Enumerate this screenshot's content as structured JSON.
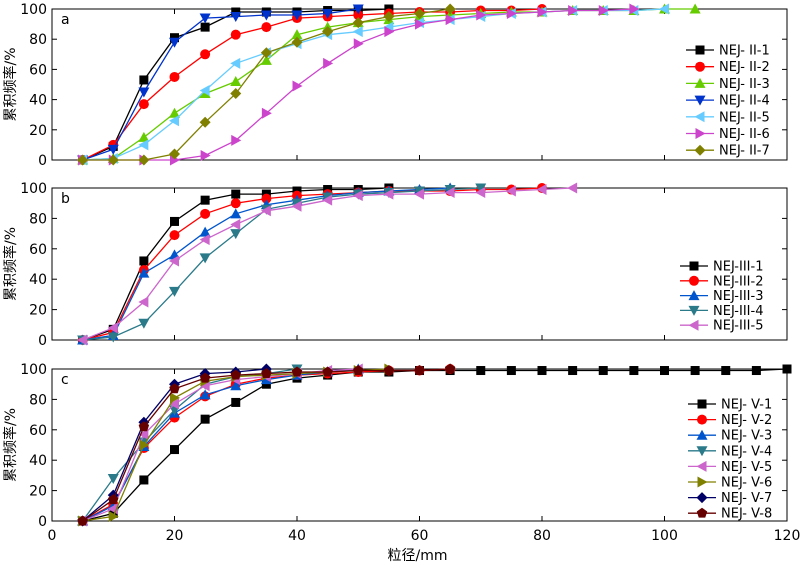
{
  "chart_data": {
    "x_axis": {
      "label": "粒径/mm",
      "min": 0,
      "max": 120,
      "ticks": [
        0,
        20,
        40,
        60,
        80,
        100,
        120
      ]
    },
    "y_axis": {
      "label": "累积频率/%",
      "min": 0,
      "max": 100,
      "ticks": [
        0,
        20,
        40,
        60,
        80,
        100
      ]
    },
    "panels": [
      {
        "tag": "a",
        "type": "line",
        "legend_position": "right",
        "series": [
          {
            "name": "NEJ- II-1",
            "color": "#000000",
            "marker": "square",
            "x": [
              5,
              10,
              15,
              20,
              25,
              30,
              35,
              40,
              45,
              50,
              55
            ],
            "y": [
              0,
              9,
              53,
              81,
              88,
              98,
              98,
              98,
              99,
              99,
              100
            ]
          },
          {
            "name": "NEJ- II-2",
            "color": "#ff0000",
            "marker": "circle",
            "x": [
              5,
              10,
              15,
              20,
              25,
              30,
              35,
              40,
              45,
              50,
              55,
              60,
              65,
              70,
              75,
              80
            ],
            "y": [
              0,
              10,
              37,
              55,
              70,
              83,
              88,
              94,
              95,
              96,
              97,
              98,
              98,
              99,
              99,
              100
            ]
          },
          {
            "name": "NEJ- II-3",
            "color": "#66cc00",
            "marker": "triangle-up",
            "x": [
              5,
              10,
              15,
              20,
              25,
              30,
              35,
              40,
              45,
              50,
              55,
              60,
              65,
              70,
              75,
              80,
              85,
              90,
              95,
              100,
              105
            ],
            "y": [
              0,
              1,
              15,
              31,
              44,
              52,
              66,
              83,
              88,
              91,
              93,
              95,
              96,
              97,
              98,
              98,
              99,
              99,
              99,
              100,
              100
            ]
          },
          {
            "name": "NEJ- II-4",
            "color": "#0033cc",
            "marker": "triangle-down",
            "x": [
              5,
              10,
              15,
              20,
              25,
              30,
              35,
              40,
              45,
              50
            ],
            "y": [
              0,
              7,
              45,
              78,
              94,
              95,
              96,
              96,
              97,
              100
            ]
          },
          {
            "name": "NEJ- II-5",
            "color": "#66ccff",
            "marker": "triangle-left",
            "x": [
              5,
              10,
              15,
              20,
              25,
              30,
              35,
              40,
              45,
              50,
              55,
              60,
              65,
              70,
              75,
              80,
              85,
              90,
              95,
              100
            ],
            "y": [
              0,
              1,
              10,
              26,
              46,
              64,
              71,
              77,
              83,
              85,
              88,
              91,
              93,
              95,
              97,
              98,
              99,
              99,
              99,
              100
            ]
          },
          {
            "name": "NEJ- II-6",
            "color": "#cc44cc",
            "marker": "triangle-right",
            "x": [
              5,
              10,
              15,
              20,
              25,
              30,
              35,
              40,
              45,
              50,
              55,
              60,
              65,
              70,
              75,
              80,
              85,
              90,
              95
            ],
            "y": [
              0,
              0,
              0,
              0,
              3,
              13,
              31,
              49,
              64,
              77,
              85,
              90,
              93,
              96,
              97,
              98,
              99,
              99,
              100
            ]
          },
          {
            "name": "NEJ- II-7",
            "color": "#808000",
            "marker": "diamond",
            "x": [
              5,
              10,
              15,
              20,
              25,
              30,
              35,
              40,
              45,
              50,
              55,
              60,
              65
            ],
            "y": [
              0,
              0,
              0,
              4,
              25,
              44,
              71,
              78,
              85,
              91,
              95,
              97,
              100
            ]
          }
        ]
      },
      {
        "tag": "b",
        "type": "line",
        "legend_position": "right",
        "series": [
          {
            "name": "NEJ-III-1",
            "color": "#000000",
            "marker": "square",
            "x": [
              5,
              10,
              15,
              20,
              25,
              30,
              35,
              40,
              45,
              50,
              55
            ],
            "y": [
              0,
              7,
              52,
              78,
              92,
              96,
              96,
              98,
              99,
              99,
              100
            ]
          },
          {
            "name": "NEJ-III-2",
            "color": "#ff0000",
            "marker": "circle",
            "x": [
              5,
              10,
              15,
              20,
              25,
              30,
              35,
              40,
              45,
              50,
              55,
              60,
              65,
              70,
              75,
              80
            ],
            "y": [
              0,
              5,
              46,
              69,
              83,
              90,
              93,
              95,
              96,
              97,
              98,
              98,
              98,
              99,
              99,
              100
            ]
          },
          {
            "name": "NEJ-III-3",
            "color": "#0055cc",
            "marker": "triangle-up",
            "x": [
              5,
              10,
              15,
              20,
              25,
              30,
              35,
              40,
              45,
              50,
              55,
              60,
              65
            ],
            "y": [
              0,
              3,
              44,
              56,
              71,
              83,
              89,
              92,
              95,
              97,
              98,
              99,
              100
            ]
          },
          {
            "name": "NEJ-III-4",
            "color": "#2a7a8a",
            "marker": "triangle-down",
            "x": [
              5,
              10,
              15,
              20,
              25,
              30,
              35,
              40,
              45,
              50,
              55,
              60,
              65,
              70
            ],
            "y": [
              0,
              2,
              11,
              32,
              54,
              70,
              86,
              90,
              94,
              96,
              97,
              98,
              99,
              100
            ]
          },
          {
            "name": "NEJ-III-5",
            "color": "#cc66cc",
            "marker": "triangle-left",
            "x": [
              5,
              10,
              15,
              20,
              25,
              30,
              35,
              40,
              45,
              50,
              55,
              60,
              65,
              70,
              75,
              80,
              85
            ],
            "y": [
              0,
              8,
              25,
              52,
              66,
              76,
              85,
              88,
              92,
              95,
              96,
              96,
              97,
              97,
              98,
              99,
              100
            ]
          }
        ]
      },
      {
        "tag": "c",
        "type": "line",
        "legend_position": "right",
        "series": [
          {
            "name": "NEJ- V-1",
            "color": "#000000",
            "marker": "square",
            "x": [
              5,
              10,
              15,
              20,
              25,
              30,
              35,
              40,
              45,
              50,
              55,
              60,
              65,
              70,
              75,
              80,
              85,
              90,
              95,
              100,
              105,
              110,
              115,
              120
            ],
            "y": [
              0,
              5,
              27,
              47,
              67,
              78,
              90,
              94,
              96,
              98,
              98,
              99,
              99,
              99,
              99,
              99,
              99,
              99,
              99,
              99,
              99,
              99,
              99,
              100
            ]
          },
          {
            "name": "NEJ- V-2",
            "color": "#ff0000",
            "marker": "circle",
            "x": [
              5,
              10,
              15,
              20,
              25,
              30,
              35,
              40,
              45,
              50,
              55,
              60,
              65
            ],
            "y": [
              0,
              11,
              48,
              68,
              82,
              90,
              94,
              96,
              97,
              98,
              99,
              99,
              100
            ]
          },
          {
            "name": "NEJ- V-3",
            "color": "#0055cc",
            "marker": "triangle-up",
            "x": [
              5,
              10,
              15,
              20,
              25,
              30,
              35,
              40,
              45,
              50
            ],
            "y": [
              0,
              10,
              49,
              71,
              83,
              89,
              93,
              96,
              98,
              100
            ]
          },
          {
            "name": "NEJ- V-4",
            "color": "#2a7a8a",
            "marker": "triangle-down",
            "x": [
              5,
              10,
              15,
              20,
              25,
              30,
              35,
              40
            ],
            "y": [
              0,
              28,
              52,
              73,
              90,
              95,
              97,
              100
            ]
          },
          {
            "name": "NEJ- V-5",
            "color": "#cc66cc",
            "marker": "triangle-left",
            "x": [
              5,
              10,
              15,
              20,
              25,
              30,
              35,
              40,
              45,
              50
            ],
            "y": [
              0,
              8,
              57,
              77,
              89,
              93,
              95,
              97,
              99,
              100
            ]
          },
          {
            "name": "NEJ- V-6",
            "color": "#808000",
            "marker": "triangle-right",
            "x": [
              5,
              10,
              15,
              20,
              25,
              30,
              35,
              40,
              45,
              50,
              55
            ],
            "y": [
              0,
              3,
              50,
              81,
              92,
              95,
              96,
              97,
              98,
              99,
              100
            ]
          },
          {
            "name": "NEJ- V-7",
            "color": "#000066",
            "marker": "diamond",
            "x": [
              5,
              10,
              15,
              20,
              25,
              30,
              35
            ],
            "y": [
              0,
              17,
              65,
              90,
              97,
              98,
              100
            ]
          },
          {
            "name": "NEJ- V-8",
            "color": "#660000",
            "marker": "pentagon",
            "x": [
              5,
              10,
              15,
              20,
              25,
              30,
              35,
              40,
              45,
              50,
              55,
              60,
              65
            ],
            "y": [
              0,
              14,
              62,
              87,
              94,
              96,
              97,
              98,
              98,
              99,
              99,
              99,
              100
            ]
          }
        ]
      }
    ]
  }
}
